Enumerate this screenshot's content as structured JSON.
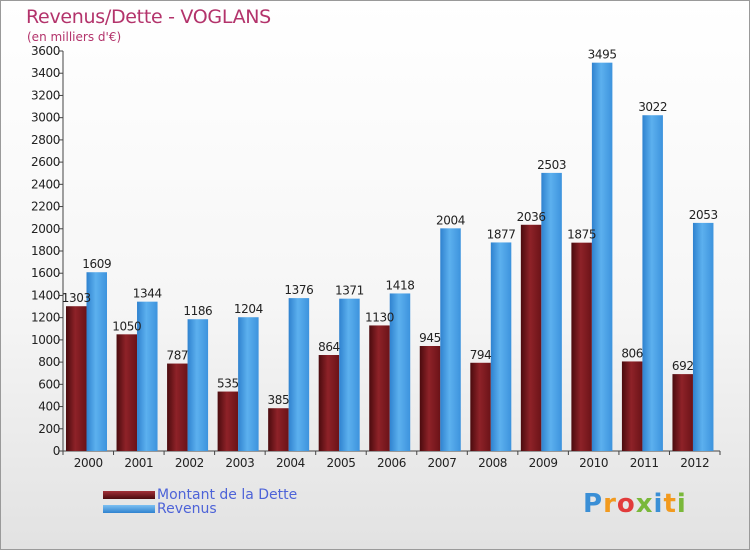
{
  "header": {
    "title": "Revenus/Dette - VOGLANS",
    "subtitle": "(en milliers d'€)"
  },
  "logo": {
    "text": "Proxiti"
  },
  "colors": {
    "dette": "#7a1a1f",
    "revenus": "#4ba1e6",
    "title": "#b3336b",
    "legend_text": "#4d63d8"
  },
  "chart_data": {
    "type": "bar",
    "categories": [
      "2000",
      "2001",
      "2002",
      "2003",
      "2004",
      "2005",
      "2006",
      "2007",
      "2008",
      "2009",
      "2010",
      "2011",
      "2012"
    ],
    "series": [
      {
        "name": "Montant de la Dette",
        "values": [
          1303,
          1050,
          787,
          535,
          385,
          864,
          1130,
          945,
          794,
          2036,
          1875,
          806,
          692
        ]
      },
      {
        "name": "Revenus",
        "values": [
          1609,
          1344,
          1186,
          1204,
          1376,
          1371,
          1418,
          2004,
          1877,
          2503,
          3495,
          3022,
          2053
        ]
      }
    ],
    "ylim": [
      0,
      3600
    ],
    "yticks": [
      0,
      200,
      400,
      600,
      800,
      1000,
      1200,
      1400,
      1600,
      1800,
      2000,
      2200,
      2400,
      2600,
      2800,
      3000,
      3200,
      3400,
      3600
    ],
    "grid": false,
    "legend_position": "bottom-left"
  }
}
